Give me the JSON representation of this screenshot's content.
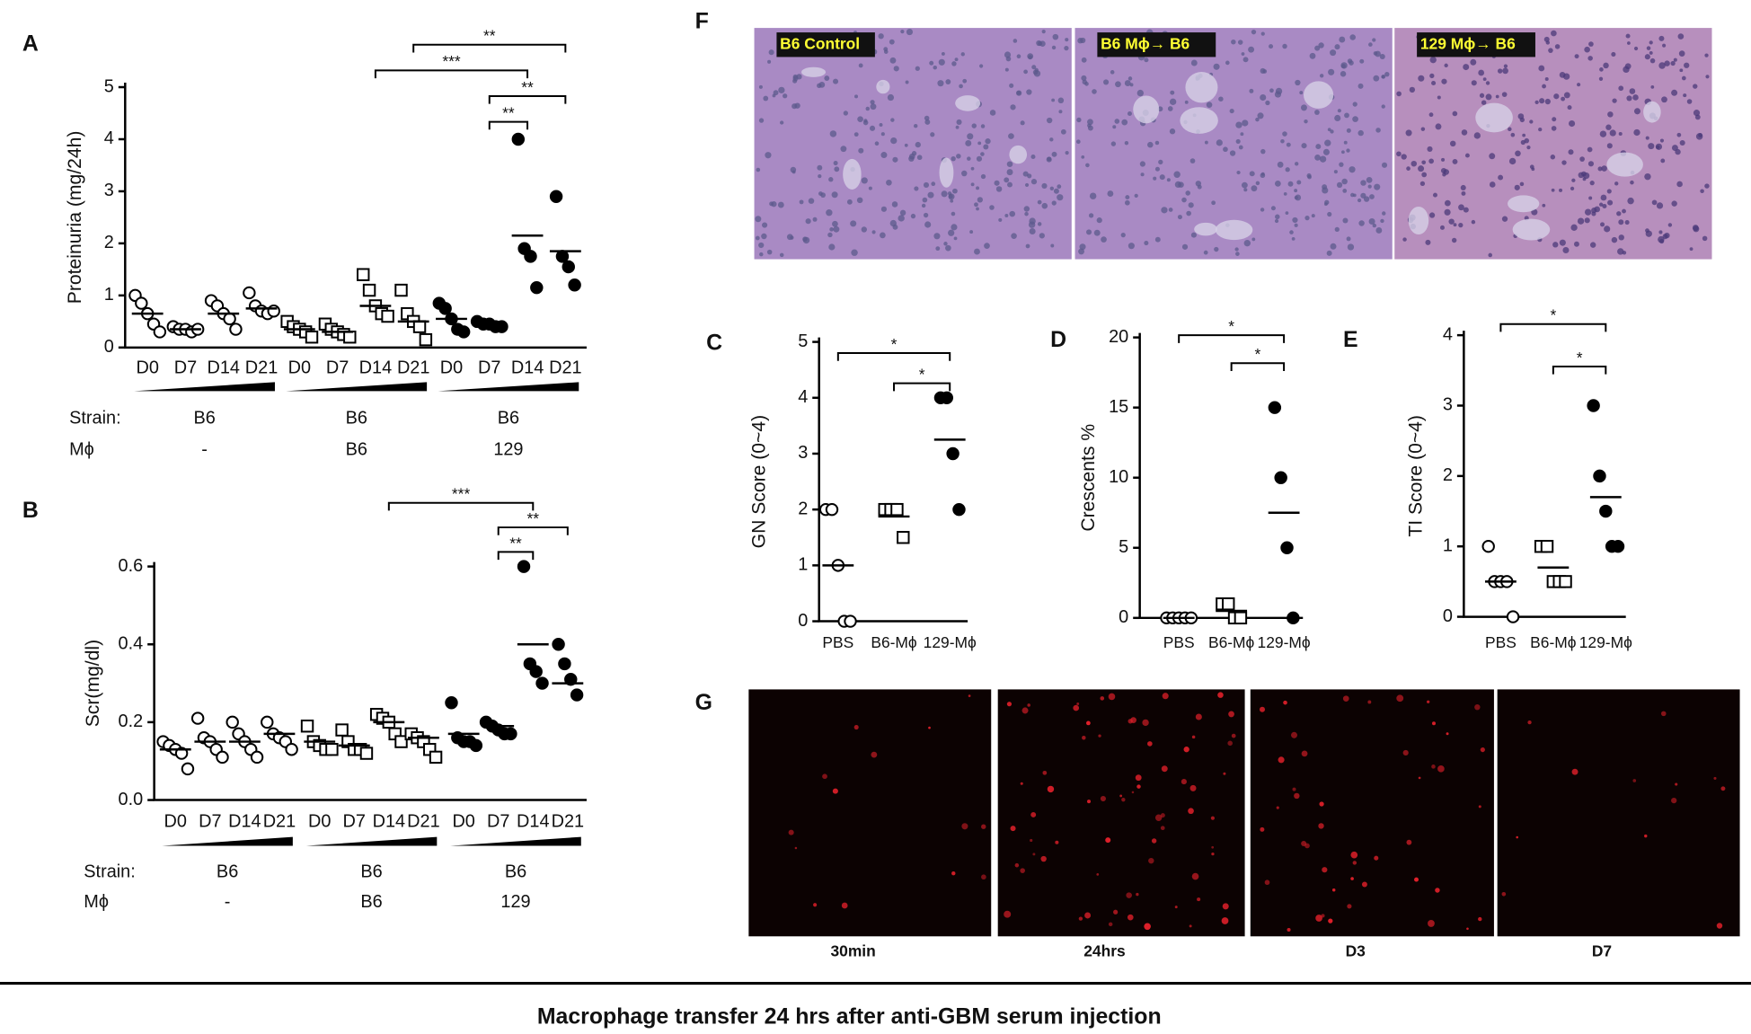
{
  "chart_data": [
    {
      "type": "dot",
      "panel": "A",
      "ylabel": "Proteinuria (mg/24h)",
      "ylim": [
        0,
        5
      ],
      "yticks": [
        0,
        1,
        2,
        3,
        4,
        5
      ],
      "strain_label": "Strain:",
      "mphi_label": "Mϕ",
      "groups": [
        {
          "strain": "B6",
          "mphi": "-",
          "marker": "open-circle",
          "categories": [
            "D0",
            "D7",
            "D14",
            "D21"
          ],
          "points": [
            [
              1.0,
              0.85,
              0.65,
              0.45,
              0.3
            ],
            [
              0.4,
              0.35,
              0.35,
              0.3,
              0.35
            ],
            [
              0.9,
              0.8,
              0.65,
              0.55,
              0.35
            ],
            [
              1.05,
              0.8,
              0.7,
              0.65,
              0.7
            ]
          ],
          "means": [
            0.65,
            0.35,
            0.65,
            0.75
          ]
        },
        {
          "strain": "B6",
          "mphi": "B6",
          "marker": "open-square",
          "categories": [
            "D0",
            "D7",
            "D14",
            "D21"
          ],
          "points": [
            [
              0.5,
              0.4,
              0.35,
              0.3,
              0.2
            ],
            [
              0.45,
              0.35,
              0.3,
              0.25,
              0.2
            ],
            [
              1.4,
              1.1,
              0.8,
              0.65,
              0.6
            ],
            [
              1.1,
              0.65,
              0.5,
              0.4,
              0.15
            ]
          ],
          "means": [
            0.35,
            0.3,
            0.8,
            0.5
          ]
        },
        {
          "strain": "B6",
          "mphi": "129",
          "marker": "filled-circle",
          "categories": [
            "D0",
            "D7",
            "D14",
            "D21"
          ],
          "points": [
            [
              0.85,
              0.75,
              0.55,
              0.35,
              0.3
            ],
            [
              0.5,
              0.45,
              0.45,
              0.4,
              0.4
            ],
            [
              4.0,
              1.9,
              1.75,
              1.15
            ],
            [
              2.9,
              1.75,
              1.55,
              1.2
            ]
          ],
          "means": [
            0.55,
            0.45,
            2.15,
            1.85
          ]
        }
      ],
      "brackets": [
        {
          "label": "**",
          "from": 7,
          "to": 11
        },
        {
          "label": "***",
          "from": 6,
          "to": 10
        },
        {
          "label": "**",
          "from": 9,
          "to": 11
        },
        {
          "label": "**",
          "from": 9,
          "to": 10
        }
      ]
    },
    {
      "type": "dot",
      "panel": "B",
      "ylabel": "Scr(mg/dl)",
      "ylim": [
        0,
        0.6
      ],
      "yticks": [
        {
          "value": 0,
          "label": "0.0"
        },
        0.2,
        0.4,
        0.6
      ],
      "strain_label": "Strain:",
      "mphi_label": "Mϕ",
      "groups": [
        {
          "strain": "B6",
          "mphi": "-",
          "marker": "open-circle",
          "categories": [
            "D0",
            "D7",
            "D14",
            "D21"
          ],
          "points": [
            [
              0.15,
              0.14,
              0.13,
              0.12,
              0.08
            ],
            [
              0.21,
              0.16,
              0.15,
              0.13,
              0.11
            ],
            [
              0.2,
              0.17,
              0.15,
              0.13,
              0.11
            ],
            [
              0.2,
              0.17,
              0.16,
              0.15,
              0.13
            ]
          ],
          "means": [
            0.13,
            0.15,
            0.15,
            0.17
          ]
        },
        {
          "strain": "B6",
          "mphi": "B6",
          "marker": "open-square",
          "categories": [
            "D0",
            "D7",
            "D14",
            "D21"
          ],
          "points": [
            [
              0.19,
              0.15,
              0.14,
              0.13,
              0.13
            ],
            [
              0.18,
              0.15,
              0.13,
              0.13,
              0.12
            ],
            [
              0.22,
              0.21,
              0.2,
              0.17,
              0.15
            ],
            [
              0.17,
              0.16,
              0.15,
              0.13,
              0.11
            ]
          ],
          "means": [
            0.15,
            0.14,
            0.2,
            0.16
          ]
        },
        {
          "strain": "B6",
          "mphi": "129",
          "marker": "filled-circle",
          "categories": [
            "D0",
            "D7",
            "D14",
            "D21"
          ],
          "points": [
            [
              0.25,
              0.16,
              0.15,
              0.15,
              0.14
            ],
            [
              0.2,
              0.19,
              0.18,
              0.17,
              0.17
            ],
            [
              0.6,
              0.35,
              0.33,
              0.3
            ],
            [
              0.4,
              0.35,
              0.31,
              0.27
            ]
          ],
          "means": [
            0.17,
            0.19,
            0.4,
            0.3
          ]
        }
      ],
      "brackets": [
        {
          "label": "***",
          "from": 6,
          "to": 10
        },
        {
          "label": "**",
          "from": 9,
          "to": 11
        },
        {
          "label": "**",
          "from": 9,
          "to": 10
        }
      ]
    },
    {
      "type": "dot",
      "panel": "C",
      "ylabel": "GN Score (0~4)",
      "ylim": [
        0,
        5
      ],
      "yticks": [
        0,
        1,
        2,
        3,
        4,
        5
      ],
      "groups": [
        {
          "marker": "open-circle",
          "categories": [
            "PBS"
          ],
          "points": [
            [
              2,
              2,
              1,
              0,
              0
            ]
          ],
          "means": [
            1
          ]
        },
        {
          "marker": "open-square",
          "categories": [
            "B6-Mϕ"
          ],
          "points": [
            [
              2,
              2,
              2,
              1.5
            ]
          ],
          "means": [
            1.875
          ]
        },
        {
          "marker": "filled-circle",
          "categories": [
            "129-Mϕ"
          ],
          "points": [
            [
              4,
              4,
              3,
              2
            ]
          ],
          "means": [
            3.25
          ]
        }
      ],
      "brackets": [
        {
          "label": "*",
          "from": 0,
          "to": 2
        },
        {
          "label": "*",
          "from": 1,
          "to": 2
        }
      ]
    },
    {
      "type": "dot",
      "panel": "D",
      "ylabel": "Crescents %",
      "ylim": [
        0,
        20
      ],
      "yticks": [
        0,
        5,
        10,
        15,
        20
      ],
      "groups": [
        {
          "marker": "open-circle",
          "categories": [
            "PBS"
          ],
          "points": [
            [
              0,
              0,
              0,
              0,
              0
            ]
          ],
          "means": [
            0
          ]
        },
        {
          "marker": "open-square",
          "categories": [
            "B6-Mϕ"
          ],
          "points": [
            [
              1,
              1,
              0,
              0
            ]
          ],
          "means": [
            0.5
          ]
        },
        {
          "marker": "filled-circle",
          "categories": [
            "129-Mϕ"
          ],
          "points": [
            [
              15,
              10,
              5,
              0
            ]
          ],
          "means": [
            7.5
          ]
        }
      ],
      "brackets": [
        {
          "label": "*",
          "from": 0,
          "to": 2
        },
        {
          "label": "*",
          "from": 1,
          "to": 2
        }
      ]
    },
    {
      "type": "dot",
      "panel": "E",
      "ylabel": "TI Score (0~4)",
      "ylim": [
        0,
        4
      ],
      "yticks": [
        0,
        1,
        2,
        3,
        4
      ],
      "groups": [
        {
          "marker": "open-circle",
          "categories": [
            "PBS"
          ],
          "points": [
            [
              1,
              0.5,
              0.5,
              0.5,
              0
            ]
          ],
          "means": [
            0.5
          ]
        },
        {
          "marker": "open-square",
          "categories": [
            "B6-Mϕ"
          ],
          "points": [
            [
              1,
              1,
              0.5,
              0.5,
              0.5
            ]
          ],
          "means": [
            0.7
          ]
        },
        {
          "marker": "filled-circle",
          "categories": [
            "129-Mϕ"
          ],
          "points": [
            [
              3,
              2,
              1.5,
              1,
              1
            ]
          ],
          "means": [
            1.7
          ]
        }
      ],
      "brackets": [
        {
          "label": "*",
          "from": 0,
          "to": 2
        },
        {
          "label": "*",
          "from": 1,
          "to": 2
        }
      ]
    }
  ],
  "figures": [
    {
      "panel": "F",
      "images": [
        "B6 Control",
        "B6 Mϕ→ B6",
        "129 Mϕ→ B6"
      ]
    },
    {
      "panel": "G",
      "images": [
        "30min",
        "24hrs",
        "D3",
        "D7"
      ]
    }
  ],
  "caption": "Macrophage transfer 24 hrs after anti-GBM serum injection"
}
